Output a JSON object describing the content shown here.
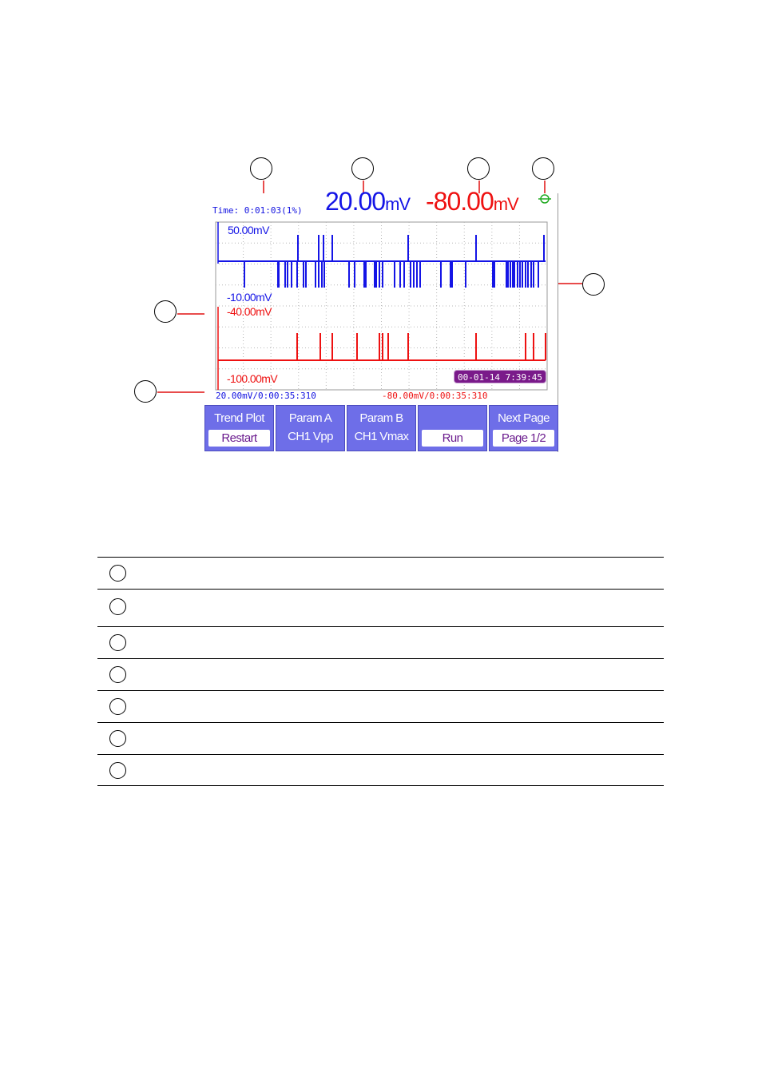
{
  "screen": {
    "time_label": "Time: 0:01:03(1%)",
    "readout_a": {
      "value": "20.00",
      "unit": "mV"
    },
    "readout_b": {
      "value": "-80.00",
      "unit": "mV"
    },
    "ch1_top_label": "50.00mV",
    "ch1_bottom_label": "-10.00mV",
    "ch2_top_label": "-40.00mV",
    "ch2_bottom_label": "-100.00mV",
    "date_badge": "00-01-14 7:39:45",
    "footer_a": "20.00mV/0:00:35:310",
    "footer_b": "-80.00mV/0:00:35:310",
    "colors": {
      "channel_a": "#1414e6",
      "channel_b": "#ee1111",
      "menu": "#6e6ee8",
      "badge": "#7a1a8a"
    }
  },
  "menu": [
    {
      "top": "Trend Plot",
      "bottom": "Restart",
      "boxed": true
    },
    {
      "top": "Param A",
      "bottom": "CH1 Vpp",
      "boxed": false
    },
    {
      "top": "Param B",
      "bottom": "CH1 Vmax",
      "boxed": false
    },
    {
      "top": "",
      "bottom": "Run",
      "boxed": true
    },
    {
      "top": "Next Page",
      "bottom": "Page 1/2",
      "boxed": true
    }
  ],
  "legend_rows": 7
}
